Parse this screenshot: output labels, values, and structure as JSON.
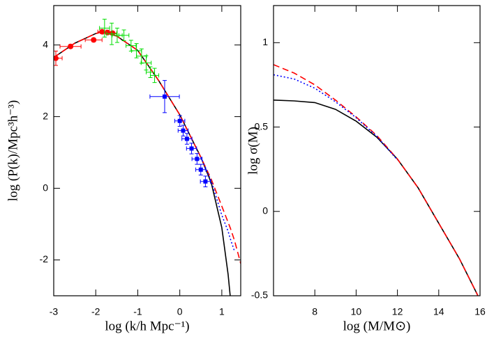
{
  "chart_data": [
    {
      "type": "line",
      "xlabel": "log (k/h Mpc⁻¹)",
      "ylabel": "log (P(k)/Mpc³h⁻³)",
      "xlim": [
        -3,
        1.45
      ],
      "ylim": [
        -3,
        5.1
      ],
      "xticks": [
        -3,
        -2,
        -1,
        0,
        1
      ],
      "yticks": [
        -2,
        0,
        2,
        4
      ],
      "x": [
        -3,
        -2.5,
        -2,
        -1.85,
        -1.5,
        -1,
        -0.5,
        0,
        0.5,
        0.75,
        1,
        1.15,
        1.2,
        1.3,
        1.45
      ],
      "series": [
        {
          "color": "#000000",
          "dash": "solid",
          "values": [
            3.65,
            4.05,
            4.32,
            4.37,
            4.25,
            3.85,
            3.0,
            2.05,
            0.87,
            0.15,
            -1.1,
            -2.4,
            -3.0,
            null,
            null
          ]
        },
        {
          "color": "#ff0000",
          "dash": "dashed",
          "values": [
            3.65,
            4.05,
            4.32,
            4.37,
            4.25,
            3.85,
            3.0,
            2.05,
            0.87,
            0.25,
            -0.5,
            -0.95,
            -1.1,
            -1.45,
            -2.1
          ]
        },
        {
          "color": "#0000ff",
          "dash": "dotted",
          "values": [
            null,
            null,
            null,
            null,
            null,
            null,
            null,
            null,
            0.87,
            0.2,
            -0.75,
            -1.2,
            -1.4,
            -1.75,
            null
          ]
        }
      ],
      "errorbars": [
        {
          "color": "#ff0000",
          "marker": "circle",
          "x": [
            -2.95,
            -2.6,
            -2.05,
            -1.85,
            -1.72,
            -1.6
          ],
          "y": [
            3.63,
            3.96,
            4.14,
            4.37,
            4.35,
            4.33
          ],
          "xerr": [
            0.15,
            0.25,
            0.2,
            0.1,
            0.1,
            0.1
          ],
          "yerr": [
            0.2,
            0.05,
            0.05,
            0.05,
            0.05,
            0.05
          ]
        },
        {
          "color": "#00dd00",
          "marker": "none",
          "x": [
            -1.79,
            -1.62,
            -1.49,
            -1.33,
            -1.16,
            -1.03,
            -0.91,
            -0.8,
            -0.7,
            -0.6
          ],
          "y": [
            4.47,
            4.31,
            4.27,
            4.27,
            3.98,
            3.84,
            3.69,
            3.5,
            3.24,
            3.15
          ],
          "xerr": [
            0.12,
            0.12,
            0.12,
            0.12,
            0.12,
            0.12,
            0.12,
            0.12,
            0.1,
            0.1
          ],
          "yerr": [
            0.25,
            0.3,
            0.2,
            0.15,
            0.15,
            0.2,
            0.2,
            0.2,
            0.15,
            0.2
          ]
        },
        {
          "color": "#0000ff",
          "marker": "square",
          "x": [
            -0.36,
            0,
            0.08,
            0.17,
            0.28,
            0.41,
            0.5,
            0.61
          ],
          "y": [
            2.56,
            1.88,
            1.61,
            1.38,
            1.11,
            0.82,
            0.52,
            0.19
          ],
          "xerr": [
            0.35,
            0.12,
            0.12,
            0.12,
            0.12,
            0.12,
            0.12,
            0.12
          ],
          "yerr": [
            0.45,
            0.15,
            0.15,
            0.15,
            0.15,
            0.15,
            0.15,
            0.15
          ]
        }
      ]
    },
    {
      "type": "line",
      "xlabel": "log (M/M⊙)",
      "ylabel": "log σ(M)",
      "xlim": [
        6,
        16
      ],
      "ylim": [
        -0.5,
        1.22
      ],
      "xticks": [
        8,
        10,
        12,
        14,
        16
      ],
      "yticks": [
        -0.5,
        0,
        0.5,
        1
      ],
      "x": [
        6,
        7,
        8,
        9,
        10,
        11,
        12,
        13,
        14,
        15,
        15.9
      ],
      "series": [
        {
          "color": "#000000",
          "dash": "solid",
          "values": [
            0.66,
            0.655,
            0.645,
            0.605,
            0.535,
            0.44,
            0.31,
            0.14,
            -0.07,
            -0.28,
            -0.5
          ]
        },
        {
          "color": "#ff0000",
          "dash": "dashed",
          "values": [
            0.87,
            0.82,
            0.75,
            0.66,
            0.56,
            0.45,
            0.31,
            0.14,
            -0.07,
            -0.28,
            -0.5
          ]
        },
        {
          "color": "#0000ff",
          "dash": "dotted",
          "values": [
            0.81,
            0.785,
            0.73,
            0.65,
            0.555,
            0.445,
            0.305,
            null,
            null,
            null,
            null
          ]
        }
      ],
      "errorbars": []
    }
  ]
}
